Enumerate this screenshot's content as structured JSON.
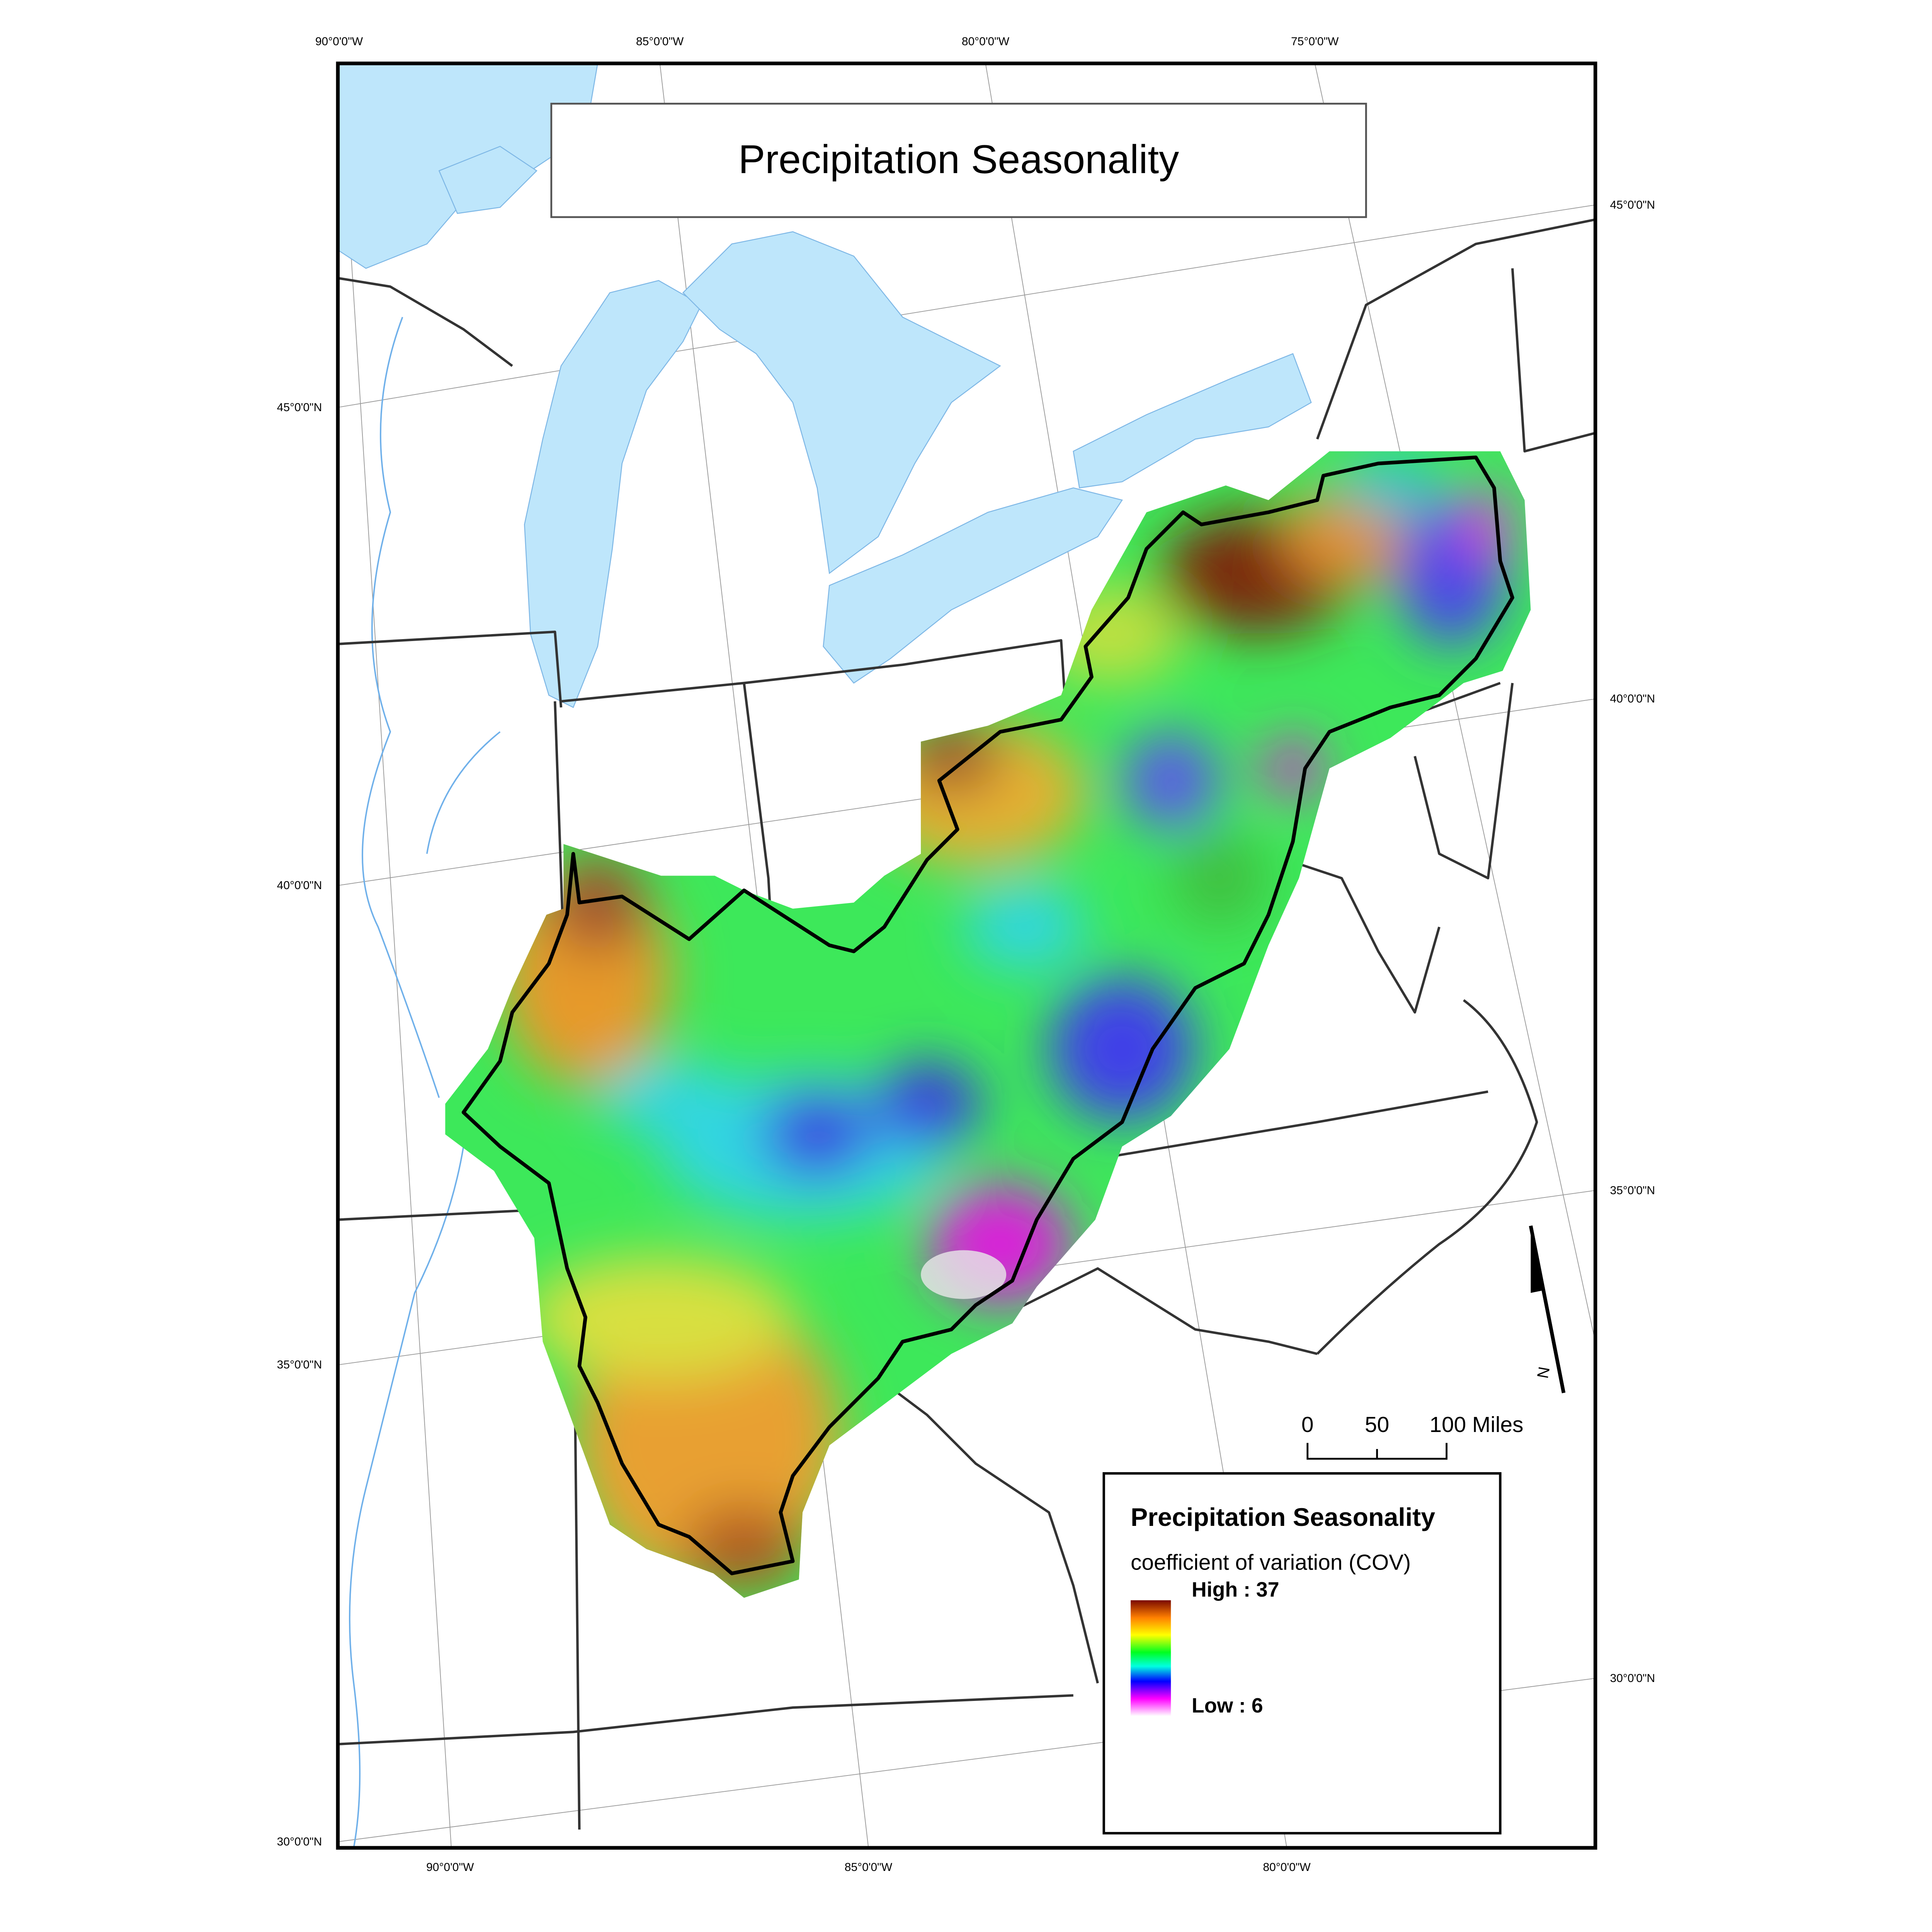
{
  "map": {
    "title": "Precipitation Seasonality",
    "top_longitude_labels": [
      "90°0'0\"W",
      "85°0'0\"W",
      "80°0'0\"W",
      "75°0'0\"W"
    ],
    "bottom_longitude_labels": [
      "90°0'0\"W",
      "85°0'0\"W",
      "80°0'0\"W"
    ],
    "left_latitude_labels": [
      "45°0'0\"N",
      "40°0'0\"N",
      "35°0'0\"N",
      "30°0'0\"N"
    ],
    "right_latitude_labels": [
      "45°0'0\"N",
      "40°0'0\"N",
      "35°0'0\"N",
      "30°0'0\"N"
    ],
    "colors": {
      "water": "#bee6fb",
      "boundary": "#000000",
      "state_lines": "#333333"
    }
  },
  "legend": {
    "title": "Precipitation Seasonality",
    "subtitle": "coefficient of variation (COV)",
    "high_label": "High : 37",
    "low_label": "Low : 6",
    "high_value": 37,
    "low_value": 6,
    "ramp_colors": [
      "#7a0a00",
      "#ff8000",
      "#ffff00",
      "#00ff20",
      "#00ffe0",
      "#0000ff",
      "#ff00ff",
      "#ffffff"
    ]
  },
  "scale_bar": {
    "labels": [
      "0",
      "50",
      "100 Miles"
    ]
  },
  "north_arrow": {
    "label": "N",
    "icon": "north-arrow-icon"
  }
}
